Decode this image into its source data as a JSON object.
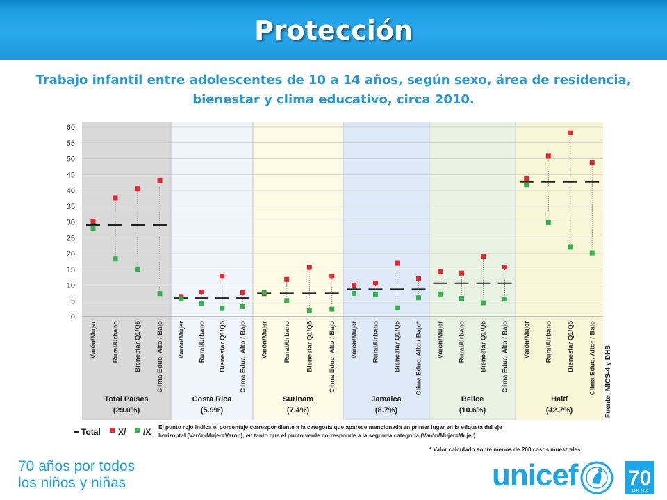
{
  "header": {
    "title": "Protección"
  },
  "chart_title": "Trabajo infantil entre adolescentes de 10 a 14 años, según sexo, área de residencia, bienestar y clima educativo, circa 2010.",
  "chart_data": {
    "type": "scatter",
    "y_ticks": [
      "60",
      "55",
      "50",
      "45",
      "40",
      "35",
      "30",
      "25",
      "20",
      "15",
      "10",
      "5",
      "0"
    ],
    "ylim": [
      0,
      60
    ],
    "grid": true,
    "source_label": "Fuente: MICS-4 y DHS",
    "colors": {
      "total": "#222222",
      "red": "#e8262d",
      "green": "#34b34a"
    },
    "groups": [
      {
        "name": "Total Países",
        "total_label": "(29.0%)",
        "total": 29.0,
        "bg": "#d9d9d9",
        "categories": [
          "Varón/Mujer",
          "Rural/Urbano",
          "Bienestar Q1/Q5",
          "Clima Educ. Alto / Bajo"
        ],
        "red": [
          30.2,
          37.6,
          40.5,
          43.2
        ],
        "green": [
          28.0,
          18.3,
          15.0,
          7.3
        ]
      },
      {
        "name": "Costa Rica",
        "total_label": "(5.9%)",
        "total": 5.9,
        "bg": "#f0f5fb",
        "categories": [
          "Varón/Mujer",
          "Rural/Urbano",
          "Bienestar Q1/Q5",
          "Clima Educ. Alto / Bajo"
        ],
        "red": [
          6.2,
          7.8,
          12.8,
          7.6
        ],
        "green": [
          5.6,
          4.2,
          2.6,
          3.2
        ]
      },
      {
        "name": "Surinam",
        "total_label": "(7.4%)",
        "total": 7.4,
        "bg": "#fdfae6",
        "categories": [
          "Varón/Mujer",
          "Rural/Urbano",
          "Bienestar Q1/Q5",
          "Clima Educ. Alto / Bajo"
        ],
        "red": [
          7.3,
          11.8,
          15.6,
          12.8
        ],
        "green": [
          7.6,
          5.1,
          2.0,
          2.4
        ]
      },
      {
        "name": "Jamaica",
        "total_label": "(8.7%)",
        "total": 8.7,
        "bg": "#dde9f6",
        "categories": [
          "Varón/Mujer",
          "Rural/Urbano",
          "Bienestar Q1/Q5",
          "Clima Educ. Alto / Bajo*"
        ],
        "red": [
          10.0,
          10.6,
          16.9,
          12.0
        ],
        "green": [
          7.4,
          7.0,
          2.8,
          6.0
        ]
      },
      {
        "name": "Belice",
        "total_label": "(10.6%)",
        "total": 10.6,
        "bg": "#e7f2e3",
        "categories": [
          "Varón/Mujer",
          "Rural/Urbano",
          "Bienestar Q1/Q5",
          "Clima Educ. Alto / Bajo"
        ],
        "red": [
          14.3,
          13.8,
          19.0,
          15.7
        ],
        "green": [
          7.2,
          5.8,
          4.4,
          5.6
        ]
      },
      {
        "name": "Haití",
        "total_label": "(42.7%)",
        "total": 42.7,
        "bg": "#f7f6d6",
        "categories": [
          "Varón/Mujer",
          "Rural/Urbano",
          "Bienestar Q1/Q5",
          "Clima Educ. Alto* / Bajo"
        ],
        "red": [
          43.6,
          50.8,
          58.2,
          48.7
        ],
        "green": [
          41.8,
          29.8,
          22.0,
          20.2
        ]
      }
    ],
    "legend": {
      "total": "Total",
      "red": "X/",
      "green": "/X",
      "note_line1": "El punto rojo indica el porcentaje correspondiente a la categoría que aparece mencionada  en primer lugar en la etiqueta del eje",
      "note_line2": "horizontal  (Varón/Mujer=Varón), en tanto que el punto verde corresponde a la segunda categoría (Varón/Mujer=Mujer).",
      "footnote": "* Valor calculado sobre menos de 200 casos muestrales"
    }
  },
  "footer": {
    "line1": "70 años por todos",
    "line2": "los niños y niñas",
    "brand": "unicef",
    "anniv_number": "70",
    "anniv_years": "1946 2016"
  }
}
